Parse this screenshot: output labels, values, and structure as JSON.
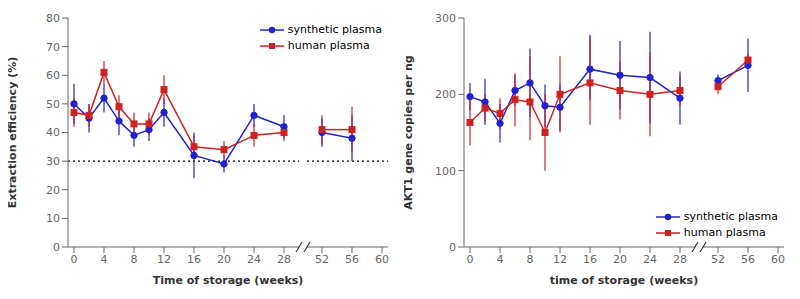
{
  "chart_data": [
    {
      "type": "line",
      "xlabel": "Time of storage (weeks)",
      "ylabel": "Extraction efficiency (%)",
      "x": [
        0,
        2,
        4,
        6,
        8,
        10,
        12,
        16,
        20,
        24,
        28,
        52,
        56
      ],
      "xlim": [
        -0.8,
        60.8
      ],
      "xticks": [
        0,
        4,
        8,
        12,
        16,
        20,
        24,
        28,
        52,
        56,
        60
      ],
      "ylim": [
        0,
        80
      ],
      "yticks": [
        0,
        10,
        20,
        30,
        40,
        50,
        60,
        70,
        80
      ],
      "grid": false,
      "legend": "upper right",
      "reference_line": {
        "y": 30,
        "line_style": "dotted"
      },
      "series": [
        {
          "name": "synthetic plasma",
          "color": "#2222CC",
          "marker": "circle",
          "line_style": "solid",
          "values": [
            50,
            45,
            52,
            44,
            39,
            41,
            47,
            32,
            29,
            46,
            42,
            40,
            38
          ],
          "yerr_lo": [
            7,
            5,
            5,
            5,
            4,
            4,
            5,
            8,
            3,
            4,
            4,
            5,
            8
          ],
          "yerr_hi": [
            7,
            5,
            5,
            5,
            4,
            4,
            5,
            8,
            3,
            4,
            4,
            5,
            8
          ]
        },
        {
          "name": "human plasma",
          "color": "#CC2222",
          "marker": "square",
          "line_style": "solid",
          "values": [
            47,
            46,
            61,
            49,
            43,
            43,
            55,
            35,
            34,
            39,
            40,
            41,
            41
          ],
          "yerr_lo": [
            5,
            4,
            4,
            4,
            4,
            4,
            5,
            4,
            3,
            4,
            3,
            5,
            8
          ],
          "yerr_hi": [
            5,
            4,
            4,
            4,
            4,
            4,
            5,
            4,
            3,
            4,
            3,
            5,
            8
          ]
        }
      ]
    },
    {
      "type": "line",
      "xlabel": "time of storage (weeks)",
      "ylabel": "AKT1 gene copies per ng",
      "x": [
        0,
        2,
        4,
        6,
        8,
        10,
        12,
        16,
        20,
        24,
        28,
        52,
        56
      ],
      "xlim": [
        -0.8,
        60.8
      ],
      "xticks": [
        0,
        4,
        8,
        12,
        16,
        20,
        24,
        28,
        52,
        56,
        60
      ],
      "ylim": [
        0,
        300
      ],
      "yticks": [
        0,
        100,
        200,
        300
      ],
      "grid": false,
      "legend": "lower right",
      "series": [
        {
          "name": "synthetic plasma",
          "color": "#2222CC",
          "marker": "circle",
          "line_style": "solid",
          "values": [
            197,
            190,
            162,
            205,
            215,
            185,
            183,
            233,
            225,
            222,
            195,
            218,
            238
          ],
          "yerr_lo": [
            18,
            30,
            25,
            20,
            45,
            28,
            30,
            40,
            45,
            60,
            35,
            8,
            35
          ],
          "yerr_hi": [
            18,
            30,
            25,
            20,
            45,
            28,
            30,
            45,
            45,
            60,
            35,
            8,
            35
          ]
        },
        {
          "name": "human plasma",
          "color": "#CC2222",
          "marker": "square",
          "line_style": "solid",
          "values": [
            163,
            182,
            175,
            193,
            190,
            150,
            200,
            215,
            205,
            200,
            205,
            210,
            245
          ],
          "yerr_lo": [
            30,
            18,
            20,
            35,
            50,
            50,
            50,
            55,
            38,
            55,
            20,
            10,
            8
          ],
          "yerr_hi": [
            30,
            18,
            20,
            35,
            60,
            50,
            50,
            60,
            38,
            55,
            20,
            10,
            8
          ]
        }
      ]
    }
  ]
}
